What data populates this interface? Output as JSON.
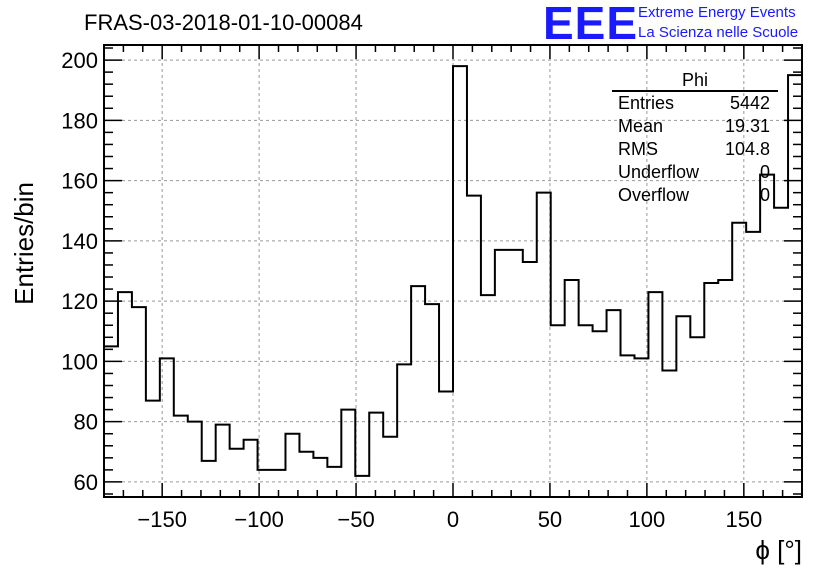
{
  "title": "FRAS-03-2018-01-10-00084",
  "logo": {
    "mark": "EEE",
    "line1": "Extreme Energy Events",
    "line2": "La Scienza nelle Scuole"
  },
  "stats": {
    "title": "Phi",
    "rows": [
      {
        "key": "Entries",
        "value": "5442"
      },
      {
        "key": "Mean",
        "value": "19.31"
      },
      {
        "key": "RMS",
        "value": "104.8"
      },
      {
        "key": "Underflow",
        "value": "0"
      },
      {
        "key": "Overflow",
        "value": "0"
      }
    ]
  },
  "chart_data": {
    "type": "histogram",
    "title": "FRAS-03-2018-01-10-00084",
    "xlabel": "ϕ [°]",
    "ylabel": "Entries/bin",
    "xlim": [
      -180,
      180
    ],
    "ylim": [
      55,
      205
    ],
    "xticks": [
      -150,
      -100,
      -50,
      0,
      50,
      100,
      150
    ],
    "yticks": [
      60,
      80,
      100,
      120,
      140,
      160,
      180,
      200
    ],
    "grid": true,
    "bin_width": 7.2,
    "series": [
      {
        "values": [
          105,
          123,
          118,
          87,
          101,
          82,
          80,
          67,
          79,
          71,
          74,
          64,
          64,
          76,
          70,
          68,
          65,
          84,
          62,
          83,
          75,
          99,
          125,
          119,
          90,
          198,
          155,
          122,
          137,
          137,
          133,
          156,
          112,
          127,
          112,
          110,
          117,
          102,
          101,
          123,
          97,
          115,
          108,
          126,
          127,
          146,
          143,
          162,
          151,
          195
        ]
      }
    ]
  }
}
